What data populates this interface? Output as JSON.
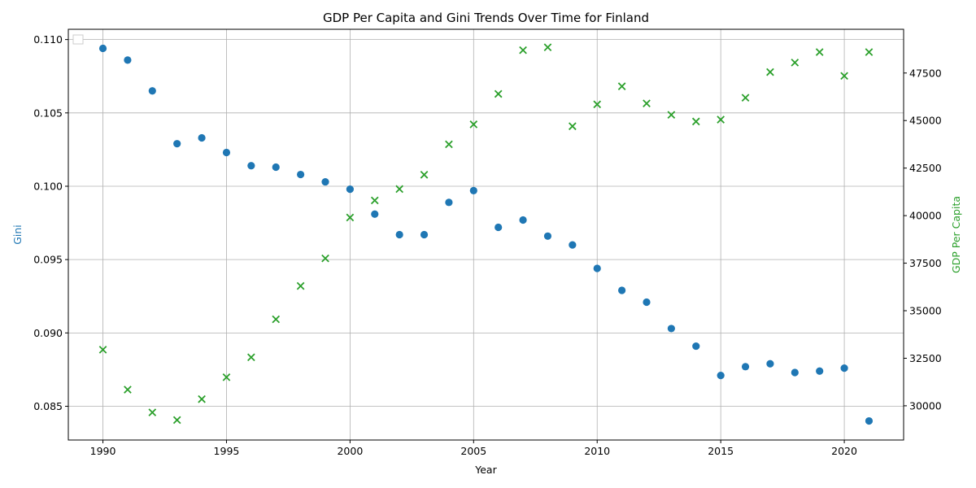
{
  "chart_data": {
    "type": "scatter",
    "title": "GDP Per Capita and Gini Trends Over Time for Finland",
    "xlabel": "Year",
    "xlim": [
      1988.6,
      2022.4
    ],
    "x_ticks": [
      1990,
      1995,
      2000,
      2005,
      2010,
      2015,
      2020
    ],
    "grid": true,
    "legend": "top-left (empty)",
    "left_axis": {
      "label": "Gini",
      "color": "#1f77b4",
      "ylim": [
        0.0827,
        0.1107
      ],
      "ticks": [
        "0.085",
        "0.090",
        "0.095",
        "0.100",
        "0.105",
        "0.110"
      ],
      "tick_values": [
        0.085,
        0.09,
        0.095,
        0.1,
        0.105,
        0.11
      ]
    },
    "right_axis": {
      "label": "GDP Per Capita",
      "color": "#2ca02c",
      "ylim": [
        28200,
        49800
      ],
      "ticks": [
        "30000",
        "32500",
        "35000",
        "37500",
        "40000",
        "42500",
        "45000",
        "47500"
      ],
      "tick_values": [
        30000,
        32500,
        35000,
        37500,
        40000,
        42500,
        45000,
        47500
      ]
    },
    "x": [
      1990,
      1991,
      1992,
      1993,
      1994,
      1995,
      1996,
      1997,
      1998,
      1999,
      2000,
      2001,
      2002,
      2003,
      2004,
      2005,
      2006,
      2007,
      2008,
      2009,
      2010,
      2011,
      2012,
      2013,
      2014,
      2015,
      2016,
      2017,
      2018,
      2019,
      2020,
      2021
    ],
    "series": [
      {
        "axis": "left",
        "marker": "circle",
        "color": "#1f77b4",
        "values": [
          0.1094,
          0.1086,
          0.1065,
          0.1029,
          0.1033,
          0.1023,
          0.1014,
          0.1013,
          0.1008,
          0.1003,
          0.0998,
          0.0981,
          0.0967,
          0.0967,
          0.0989,
          0.0997,
          0.0972,
          0.0977,
          0.0966,
          0.096,
          0.0944,
          0.0929,
          0.0921,
          0.0903,
          0.0891,
          0.0871,
          0.0877,
          0.0879,
          0.0873,
          0.0874,
          0.0876,
          0.084
        ]
      },
      {
        "axis": "right",
        "marker": "x",
        "color": "#2ca02c",
        "values": [
          32950,
          30850,
          29650,
          29250,
          30350,
          31500,
          32550,
          34550,
          36300,
          37750,
          39900,
          40800,
          41400,
          42150,
          43750,
          44800,
          46400,
          48700,
          48850,
          44700,
          45850,
          46800,
          45900,
          45300,
          44950,
          45050,
          46200,
          47550,
          48050,
          48600,
          47350,
          48600
        ]
      }
    ]
  }
}
